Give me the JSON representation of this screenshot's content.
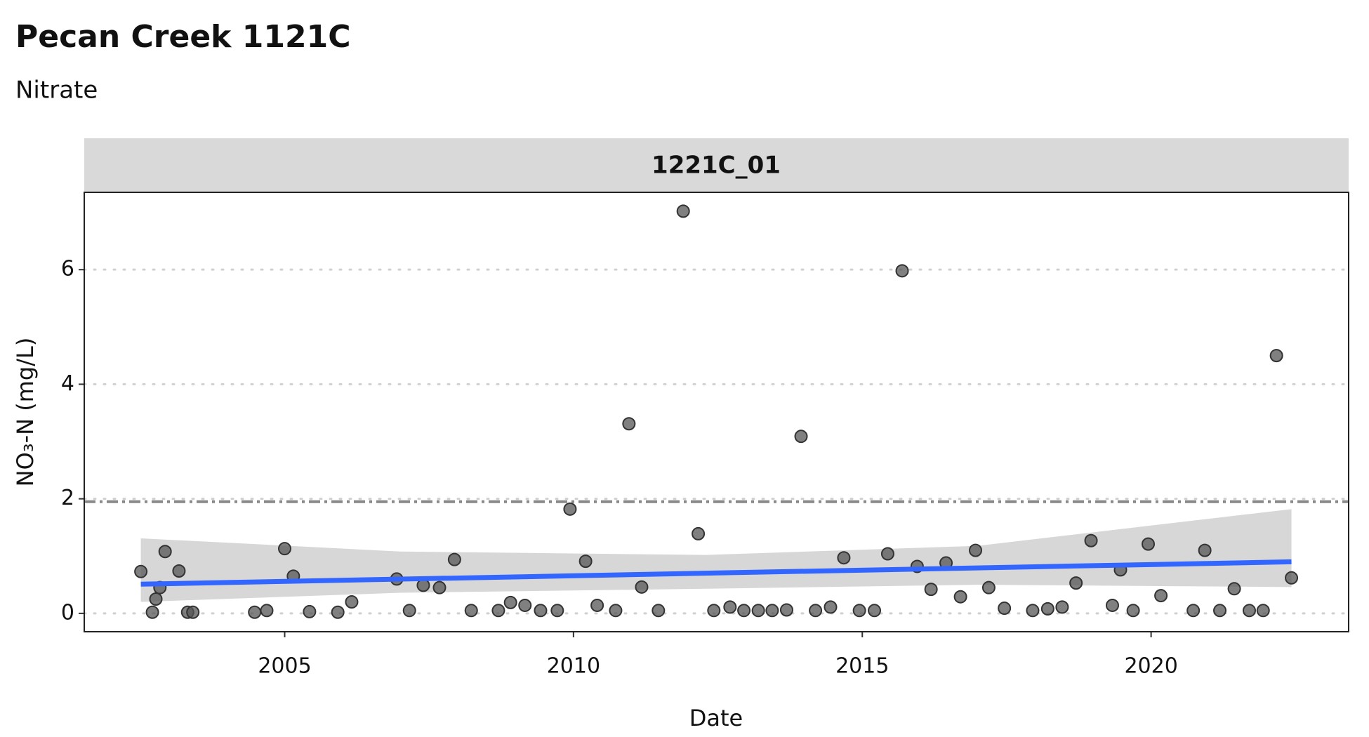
{
  "chart_data": {
    "type": "scatter",
    "title": "Pecan Creek 1121C",
    "subtitle": "Nitrate",
    "facet_label": "1221C_01",
    "x_label": "Date",
    "y_label": "NO₃-N (mg/L)",
    "xlim": [
      2001.53,
      2023.42
    ],
    "ylim": [
      -0.32,
      7.35
    ],
    "xticks": [
      2005,
      2010,
      2015,
      2020
    ],
    "yticks": [
      0,
      2,
      4,
      6
    ],
    "grid": true,
    "color": "#555555",
    "x": [
      2002.51,
      2002.71,
      2002.77,
      2002.84,
      2002.93,
      2003.17,
      2003.32,
      2003.41,
      2004.48,
      2004.69,
      2005.0,
      2005.15,
      2005.43,
      2005.92,
      2006.16,
      2006.94,
      2007.16,
      2007.4,
      2007.68,
      2007.94,
      2008.23,
      2008.7,
      2008.91,
      2009.16,
      2009.43,
      2009.72,
      2009.94,
      2010.21,
      2010.41,
      2010.73,
      2010.96,
      2011.18,
      2011.47,
      2011.9,
      2012.16,
      2012.43,
      2012.71,
      2012.95,
      2013.2,
      2013.44,
      2013.69,
      2013.94,
      2014.19,
      2014.45,
      2014.68,
      2014.95,
      2015.21,
      2015.44,
      2015.69,
      2015.95,
      2016.19,
      2016.45,
      2016.7,
      2016.96,
      2017.19,
      2017.46,
      2017.95,
      2018.21,
      2018.46,
      2018.7,
      2018.96,
      2019.33,
      2019.47,
      2019.69,
      2019.95,
      2020.17,
      2020.73,
      2020.93,
      2021.19,
      2021.44,
      2021.7,
      2021.94,
      2022.17,
      2022.43
    ],
    "values": [
      0.73,
      0.02,
      0.25,
      0.45,
      1.08,
      0.74,
      0.02,
      0.02,
      0.02,
      0.05,
      1.13,
      0.65,
      0.03,
      0.02,
      0.2,
      0.6,
      0.05,
      0.49,
      0.45,
      0.94,
      0.05,
      0.05,
      0.19,
      0.14,
      0.05,
      0.05,
      1.82,
      0.91,
      0.14,
      0.05,
      3.31,
      0.46,
      0.05,
      7.02,
      1.39,
      0.05,
      0.11,
      0.05,
      0.05,
      0.05,
      0.06,
      3.09,
      0.05,
      0.11,
      0.97,
      0.05,
      0.05,
      1.04,
      5.98,
      0.82,
      0.42,
      0.88,
      0.29,
      1.1,
      0.45,
      0.09,
      0.05,
      0.08,
      0.11,
      0.53,
      1.27,
      0.14,
      0.76,
      0.05,
      1.21,
      0.31,
      0.05,
      1.1,
      0.05,
      0.43,
      0.05,
      0.05,
      4.5,
      0.62
    ],
    "trend": {
      "color": "#3366ff",
      "x": [
        2002.51,
        2022.43
      ],
      "values": [
        0.51,
        0.9
      ]
    },
    "band": {
      "color": "#d3d3d3",
      "x": [
        2002.51,
        2007,
        2012.3,
        2017,
        2022.43
      ],
      "upper": [
        1.31,
        1.08,
        1.02,
        1.18,
        1.82
      ],
      "lower": [
        0.2,
        0.36,
        0.43,
        0.5,
        0.46
      ]
    },
    "reference_line": 1.95
  }
}
